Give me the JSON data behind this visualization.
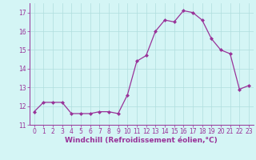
{
  "x": [
    0,
    1,
    2,
    3,
    4,
    5,
    6,
    7,
    8,
    9,
    10,
    11,
    12,
    13,
    14,
    15,
    16,
    17,
    18,
    19,
    20,
    21,
    22,
    23
  ],
  "y": [
    11.7,
    12.2,
    12.2,
    12.2,
    11.6,
    11.6,
    11.6,
    11.7,
    11.7,
    11.6,
    12.6,
    14.4,
    14.7,
    16.0,
    16.6,
    16.5,
    17.1,
    17.0,
    16.6,
    15.6,
    15.0,
    14.8,
    12.9,
    13.1
  ],
  "line_color": "#993399",
  "marker": "D",
  "marker_size": 2.0,
  "linewidth": 0.9,
  "xlabel": "Windchill (Refroidissement éolien,°C)",
  "xlabel_fontsize": 6.5,
  "ylim": [
    11,
    17.5
  ],
  "yticks": [
    11,
    12,
    13,
    14,
    15,
    16,
    17
  ],
  "xticks": [
    0,
    1,
    2,
    3,
    4,
    5,
    6,
    7,
    8,
    9,
    10,
    11,
    12,
    13,
    14,
    15,
    16,
    17,
    18,
    19,
    20,
    21,
    22,
    23
  ],
  "grid_color": "#b0dede",
  "bg_color": "#d4f5f5",
  "tick_color": "#993399",
  "tick_fontsize": 5.5,
  "spine_color": "#993399"
}
